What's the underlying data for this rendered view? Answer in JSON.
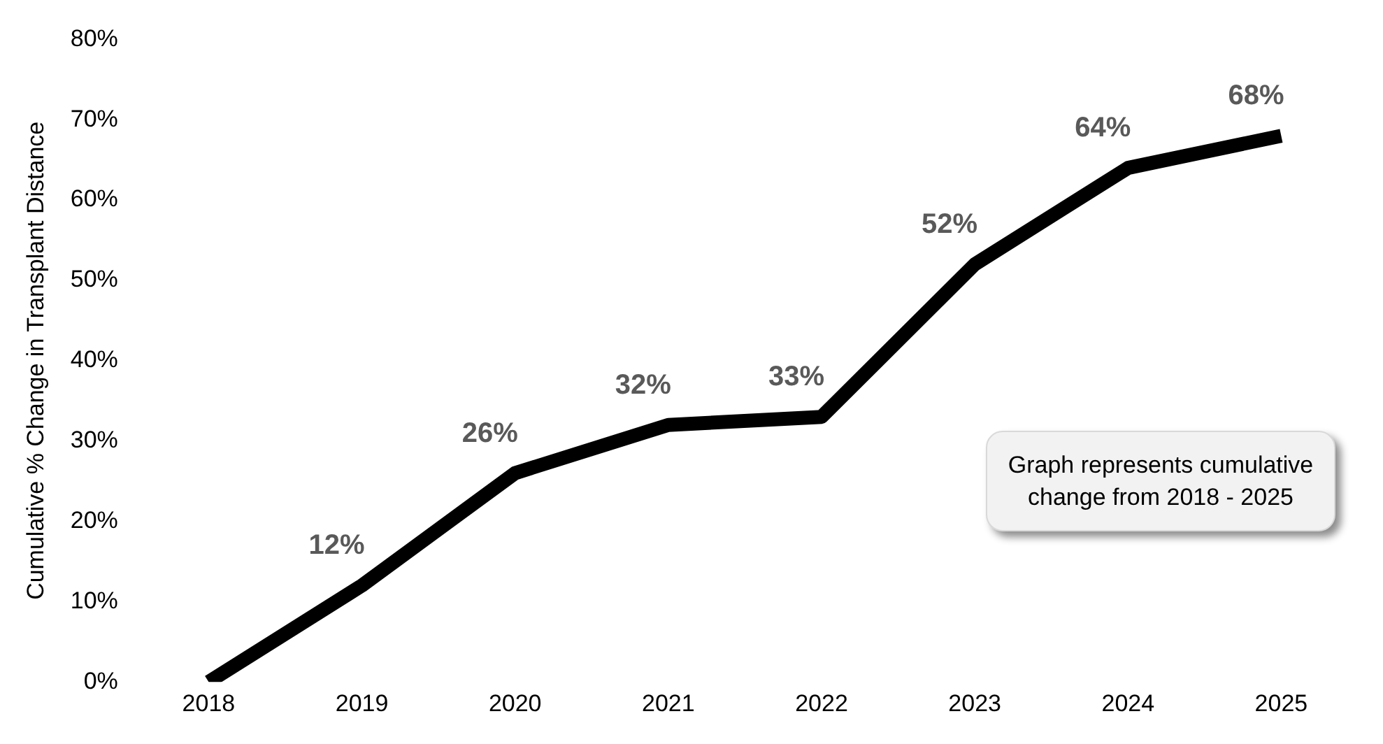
{
  "chart_data": {
    "type": "line",
    "ylabel": "Cumulative % Change in Transplant Distance",
    "categories": [
      "2018",
      "2019",
      "2020",
      "2021",
      "2022",
      "2023",
      "2024",
      "2025"
    ],
    "series": [
      {
        "color": "#000000",
        "values": [
          0,
          12,
          26,
          32,
          33,
          52,
          64,
          68
        ],
        "value_labels": [
          null,
          "12%",
          "26%",
          "32%",
          "33%",
          "52%",
          "64%",
          "68%"
        ]
      }
    ],
    "ylim": [
      0,
      80
    ],
    "yticks": [
      {
        "value": 0,
        "label": "0%"
      },
      {
        "value": 10,
        "label": "10%"
      },
      {
        "value": 20,
        "label": "20%"
      },
      {
        "value": 30,
        "label": "30%"
      },
      {
        "value": 40,
        "label": "40%"
      },
      {
        "value": 50,
        "label": "50%"
      },
      {
        "value": 60,
        "label": "60%"
      },
      {
        "value": 70,
        "label": "70%"
      },
      {
        "value": 80,
        "label": "80%"
      }
    ],
    "grid": false,
    "legend": false,
    "marker": "none",
    "line_style": "solid",
    "annotations": [
      "Graph represents cumulative change from 2018 - 2025"
    ]
  }
}
